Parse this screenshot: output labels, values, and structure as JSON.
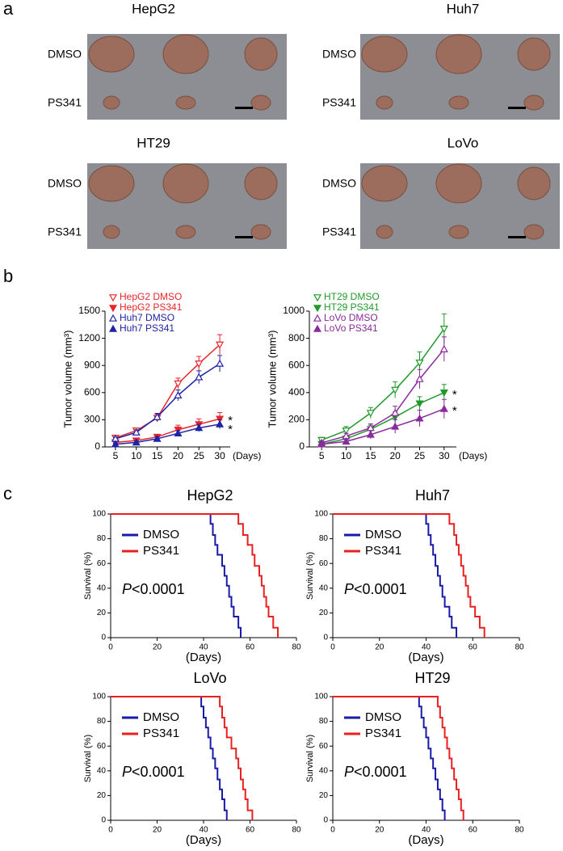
{
  "panels": [
    "a",
    "b",
    "c"
  ],
  "photos": [
    {
      "title": "HepG2",
      "rows": [
        "DMSO",
        "PS341"
      ]
    },
    {
      "title": "Huh7",
      "rows": [
        "DMSO",
        "PS341"
      ]
    },
    {
      "title": "HT29",
      "rows": [
        "DMSO",
        "PS341"
      ]
    },
    {
      "title": "LoVo",
      "rows": [
        "DMSO",
        "PS341"
      ]
    }
  ],
  "chart_data": [
    {
      "type": "line",
      "y_label": "Tumor volume (mm³)",
      "x_label": "(Days)",
      "x": [
        5,
        10,
        15,
        20,
        25,
        30
      ],
      "xlim": [
        2.5,
        32.5
      ],
      "xticks": [
        5,
        10,
        15,
        20,
        25,
        30
      ],
      "ylim": [
        0,
        1500
      ],
      "yticks": [
        0,
        300,
        600,
        900,
        1200,
        1500
      ],
      "series": [
        {
          "name": "HepG2 DMSO",
          "color": "#e8262a",
          "marker": "down",
          "filled": false,
          "values": [
            100,
            180,
            320,
            700,
            920,
            1130
          ],
          "errors": [
            20,
            30,
            40,
            60,
            80,
            110
          ]
        },
        {
          "name": "HepG2 PS341",
          "color": "#e8262a",
          "marker": "down",
          "filled": true,
          "values": [
            50,
            70,
            110,
            190,
            250,
            310
          ],
          "errors": [
            15,
            20,
            30,
            50,
            60,
            70
          ]
        },
        {
          "name": "Huh7 DMSO",
          "color": "#1f23a6",
          "marker": "up",
          "filled": false,
          "values": [
            90,
            160,
            330,
            570,
            770,
            920
          ],
          "errors": [
            20,
            30,
            40,
            60,
            70,
            90
          ]
        },
        {
          "name": "Huh7 PS341",
          "color": "#1f23a6",
          "marker": "up",
          "filled": true,
          "values": [
            30,
            50,
            90,
            150,
            210,
            250
          ],
          "errors": [
            10,
            15,
            20,
            30,
            40,
            50
          ]
        }
      ],
      "annotations": [
        "*",
        "*"
      ]
    },
    {
      "type": "line",
      "y_label": "Tumor volume (mm³)",
      "x_label": "(Days)",
      "x": [
        5,
        10,
        15,
        20,
        25,
        30
      ],
      "xlim": [
        2.5,
        32.5
      ],
      "xticks": [
        5,
        10,
        15,
        20,
        25,
        30
      ],
      "ylim": [
        0,
        1000
      ],
      "yticks": [
        0,
        200,
        400,
        600,
        800,
        1000
      ],
      "series": [
        {
          "name": "HT29 DMSO",
          "color": "#1f9a2a",
          "marker": "down",
          "filled": false,
          "values": [
            50,
            120,
            250,
            420,
            620,
            870
          ],
          "errors": [
            20,
            30,
            40,
            60,
            80,
            110
          ]
        },
        {
          "name": "HT29 PS341",
          "color": "#1f9a2a",
          "marker": "down",
          "filled": true,
          "values": [
            20,
            60,
            130,
            220,
            320,
            400
          ],
          "errors": [
            10,
            15,
            30,
            40,
            50,
            60
          ]
        },
        {
          "name": "LoVo DMSO",
          "color": "#8a2a9c",
          "marker": "up",
          "filled": false,
          "values": [
            30,
            80,
            140,
            250,
            500,
            720
          ],
          "errors": [
            15,
            20,
            30,
            50,
            70,
            90
          ]
        },
        {
          "name": "LoVo PS341",
          "color": "#8a2a9c",
          "marker": "up",
          "filled": true,
          "values": [
            20,
            40,
            90,
            150,
            210,
            280
          ],
          "errors": [
            10,
            15,
            30,
            50,
            60,
            70
          ]
        }
      ],
      "annotations": [
        "*",
        "*"
      ]
    },
    {
      "type": "step",
      "title": "HepG2",
      "y_label": "Survival (%)",
      "x_label": "(Days)",
      "xlim": [
        0,
        80
      ],
      "xticks": [
        0,
        20,
        40,
        60,
        80
      ],
      "ylim": [
        0,
        100
      ],
      "yticks": [
        0,
        20,
        40,
        60,
        80,
        100
      ],
      "series": [
        {
          "name": "DMSO",
          "color": "#1a1aa8",
          "x": [
            0,
            43,
            44,
            45,
            46,
            48,
            49,
            50,
            51,
            52,
            53,
            55,
            56
          ],
          "values": [
            100,
            92,
            83,
            75,
            67,
            58,
            50,
            42,
            33,
            25,
            17,
            8,
            0
          ]
        },
        {
          "name": "PS341",
          "color": "#e82020",
          "x": [
            0,
            55,
            57,
            59,
            61,
            62,
            64,
            65,
            66,
            67,
            68,
            70,
            72
          ],
          "values": [
            100,
            92,
            83,
            75,
            67,
            58,
            50,
            42,
            33,
            25,
            17,
            8,
            0
          ]
        }
      ],
      "annotations": [
        "P<0.0001"
      ]
    },
    {
      "type": "step",
      "title": "Huh7",
      "y_label": "Survival (%)",
      "x_label": "(Days)",
      "xlim": [
        0,
        80
      ],
      "xticks": [
        0,
        20,
        40,
        60,
        80
      ],
      "ylim": [
        0,
        100
      ],
      "yticks": [
        0,
        20,
        40,
        60,
        80,
        100
      ],
      "series": [
        {
          "name": "DMSO",
          "color": "#1a1aa8",
          "x": [
            0,
            40,
            41,
            42,
            43,
            44,
            45,
            46,
            47,
            48,
            50,
            51,
            53
          ],
          "values": [
            100,
            92,
            83,
            75,
            67,
            58,
            50,
            42,
            33,
            25,
            17,
            8,
            0
          ]
        },
        {
          "name": "PS341",
          "color": "#e82020",
          "x": [
            0,
            50,
            52,
            53,
            54,
            55,
            56,
            57,
            58,
            59,
            61,
            63,
            65
          ],
          "values": [
            100,
            92,
            83,
            75,
            67,
            58,
            50,
            42,
            33,
            25,
            17,
            8,
            0
          ]
        }
      ],
      "annotations": [
        "P<0.0001"
      ]
    },
    {
      "type": "step",
      "title": "LoVo",
      "y_label": "Survival (%)",
      "x_label": "(Days)",
      "xlim": [
        0,
        80
      ],
      "xticks": [
        0,
        20,
        40,
        60,
        80
      ],
      "ylim": [
        0,
        100
      ],
      "yticks": [
        0,
        20,
        40,
        60,
        80,
        100
      ],
      "series": [
        {
          "name": "DMSO",
          "color": "#1a1aa8",
          "x": [
            0,
            39,
            40,
            41,
            42,
            43,
            44,
            45,
            46,
            47,
            48,
            49,
            50
          ],
          "values": [
            100,
            92,
            83,
            75,
            67,
            58,
            50,
            42,
            33,
            25,
            17,
            8,
            0
          ]
        },
        {
          "name": "PS341",
          "color": "#e82020",
          "x": [
            0,
            47,
            48,
            49,
            50,
            52,
            54,
            55,
            56,
            57,
            58,
            59,
            61
          ],
          "values": [
            100,
            92,
            83,
            75,
            67,
            58,
            50,
            42,
            33,
            25,
            17,
            8,
            0
          ]
        }
      ],
      "annotations": [
        "P<0.0001"
      ]
    },
    {
      "type": "step",
      "title": "HT29",
      "y_label": "Survival (%)",
      "x_label": "(Days)",
      "xlim": [
        0,
        80
      ],
      "xticks": [
        0,
        20,
        40,
        60,
        80
      ],
      "ylim": [
        0,
        100
      ],
      "yticks": [
        0,
        20,
        40,
        60,
        80,
        100
      ],
      "series": [
        {
          "name": "DMSO",
          "color": "#1a1aa8",
          "x": [
            0,
            37,
            38,
            39,
            40,
            41,
            42,
            43,
            44,
            45,
            46,
            47,
            48
          ],
          "values": [
            100,
            92,
            83,
            75,
            67,
            58,
            50,
            42,
            33,
            25,
            17,
            8,
            0
          ]
        },
        {
          "name": "PS341",
          "color": "#e82020",
          "x": [
            0,
            45,
            46,
            47,
            48,
            49,
            50,
            51,
            52,
            53,
            54,
            55,
            56
          ],
          "values": [
            100,
            92,
            83,
            75,
            67,
            58,
            50,
            42,
            33,
            25,
            17,
            8,
            0
          ]
        }
      ],
      "annotations": [
        "P<0.0001"
      ]
    }
  ]
}
